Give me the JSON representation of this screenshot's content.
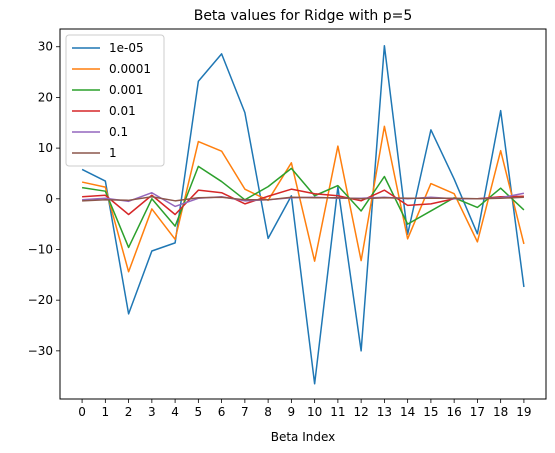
{
  "chart_data": {
    "type": "line",
    "title": "Beta values for Ridge with p=5",
    "xlabel": "Beta Index",
    "ylabel": "",
    "x": [
      0,
      1,
      2,
      3,
      4,
      5,
      6,
      7,
      8,
      9,
      10,
      11,
      12,
      13,
      14,
      15,
      16,
      17,
      18,
      19
    ],
    "x_ticks": [
      "0",
      "1",
      "2",
      "3",
      "4",
      "5",
      "6",
      "7",
      "8",
      "9",
      "10",
      "11",
      "12",
      "13",
      "14",
      "15",
      "16",
      "17",
      "18",
      "19"
    ],
    "y_ticks": [
      "30",
      "20",
      "10",
      "0",
      "−10",
      "−20",
      "−30"
    ],
    "y_tick_values": [
      30,
      20,
      10,
      0,
      -10,
      -20,
      -30
    ],
    "xlim": [
      -0.95,
      19.95
    ],
    "ylim": [
      -39.5,
      33.5
    ],
    "grid": false,
    "legend_position": "upper-left",
    "series": [
      {
        "name": "1e-05",
        "color": "#1f77b4",
        "values": [
          5.8,
          3.5,
          -22.7,
          -10.3,
          -8.7,
          23.2,
          28.6,
          17.0,
          -7.8,
          0.6,
          -36.5,
          2.3,
          -30.0,
          30.2,
          -7.0,
          13.6,
          3.9,
          -6.9,
          17.4,
          -17.4
        ]
      },
      {
        "name": "0.0001",
        "color": "#ff7f0e",
        "values": [
          3.3,
          2.3,
          -14.4,
          -2.0,
          -8.0,
          11.3,
          9.4,
          1.9,
          -0.3,
          7.1,
          -12.3,
          10.4,
          -12.2,
          14.3,
          -7.9,
          3.0,
          1.0,
          -8.5,
          9.5,
          -8.9
        ]
      },
      {
        "name": "0.001",
        "color": "#2ca02c",
        "values": [
          2.2,
          1.5,
          -9.6,
          0.0,
          -5.4,
          6.4,
          3.4,
          -0.2,
          2.4,
          6.0,
          0.6,
          2.6,
          -2.4,
          4.4,
          -5.0,
          -2.4,
          0.2,
          -1.7,
          2.1,
          -2.2
        ]
      },
      {
        "name": "0.01",
        "color": "#d62728",
        "values": [
          0.4,
          0.7,
          -3.1,
          0.7,
          -3.1,
          1.7,
          1.2,
          -1.0,
          0.5,
          1.9,
          1.0,
          0.6,
          -0.4,
          1.7,
          -1.3,
          -1.0,
          0.0,
          0.0,
          0.4,
          0.5
        ]
      },
      {
        "name": "0.1",
        "color": "#9467bd",
        "values": [
          -0.2,
          0.1,
          -0.5,
          1.2,
          -1.5,
          0.1,
          0.4,
          -0.4,
          -0.2,
          0.2,
          0.3,
          0.1,
          0.1,
          0.3,
          0.0,
          0.3,
          0.0,
          0.0,
          0.2,
          1.1
        ]
      },
      {
        "name": "1",
        "color": "#8c564b",
        "values": [
          -0.4,
          -0.2,
          -0.3,
          0.4,
          -0.4,
          0.2,
          0.3,
          -0.2,
          -0.2,
          0.3,
          0.2,
          0.2,
          0.0,
          0.2,
          0.1,
          0.1,
          0.1,
          0.0,
          0.1,
          0.3
        ]
      }
    ]
  }
}
